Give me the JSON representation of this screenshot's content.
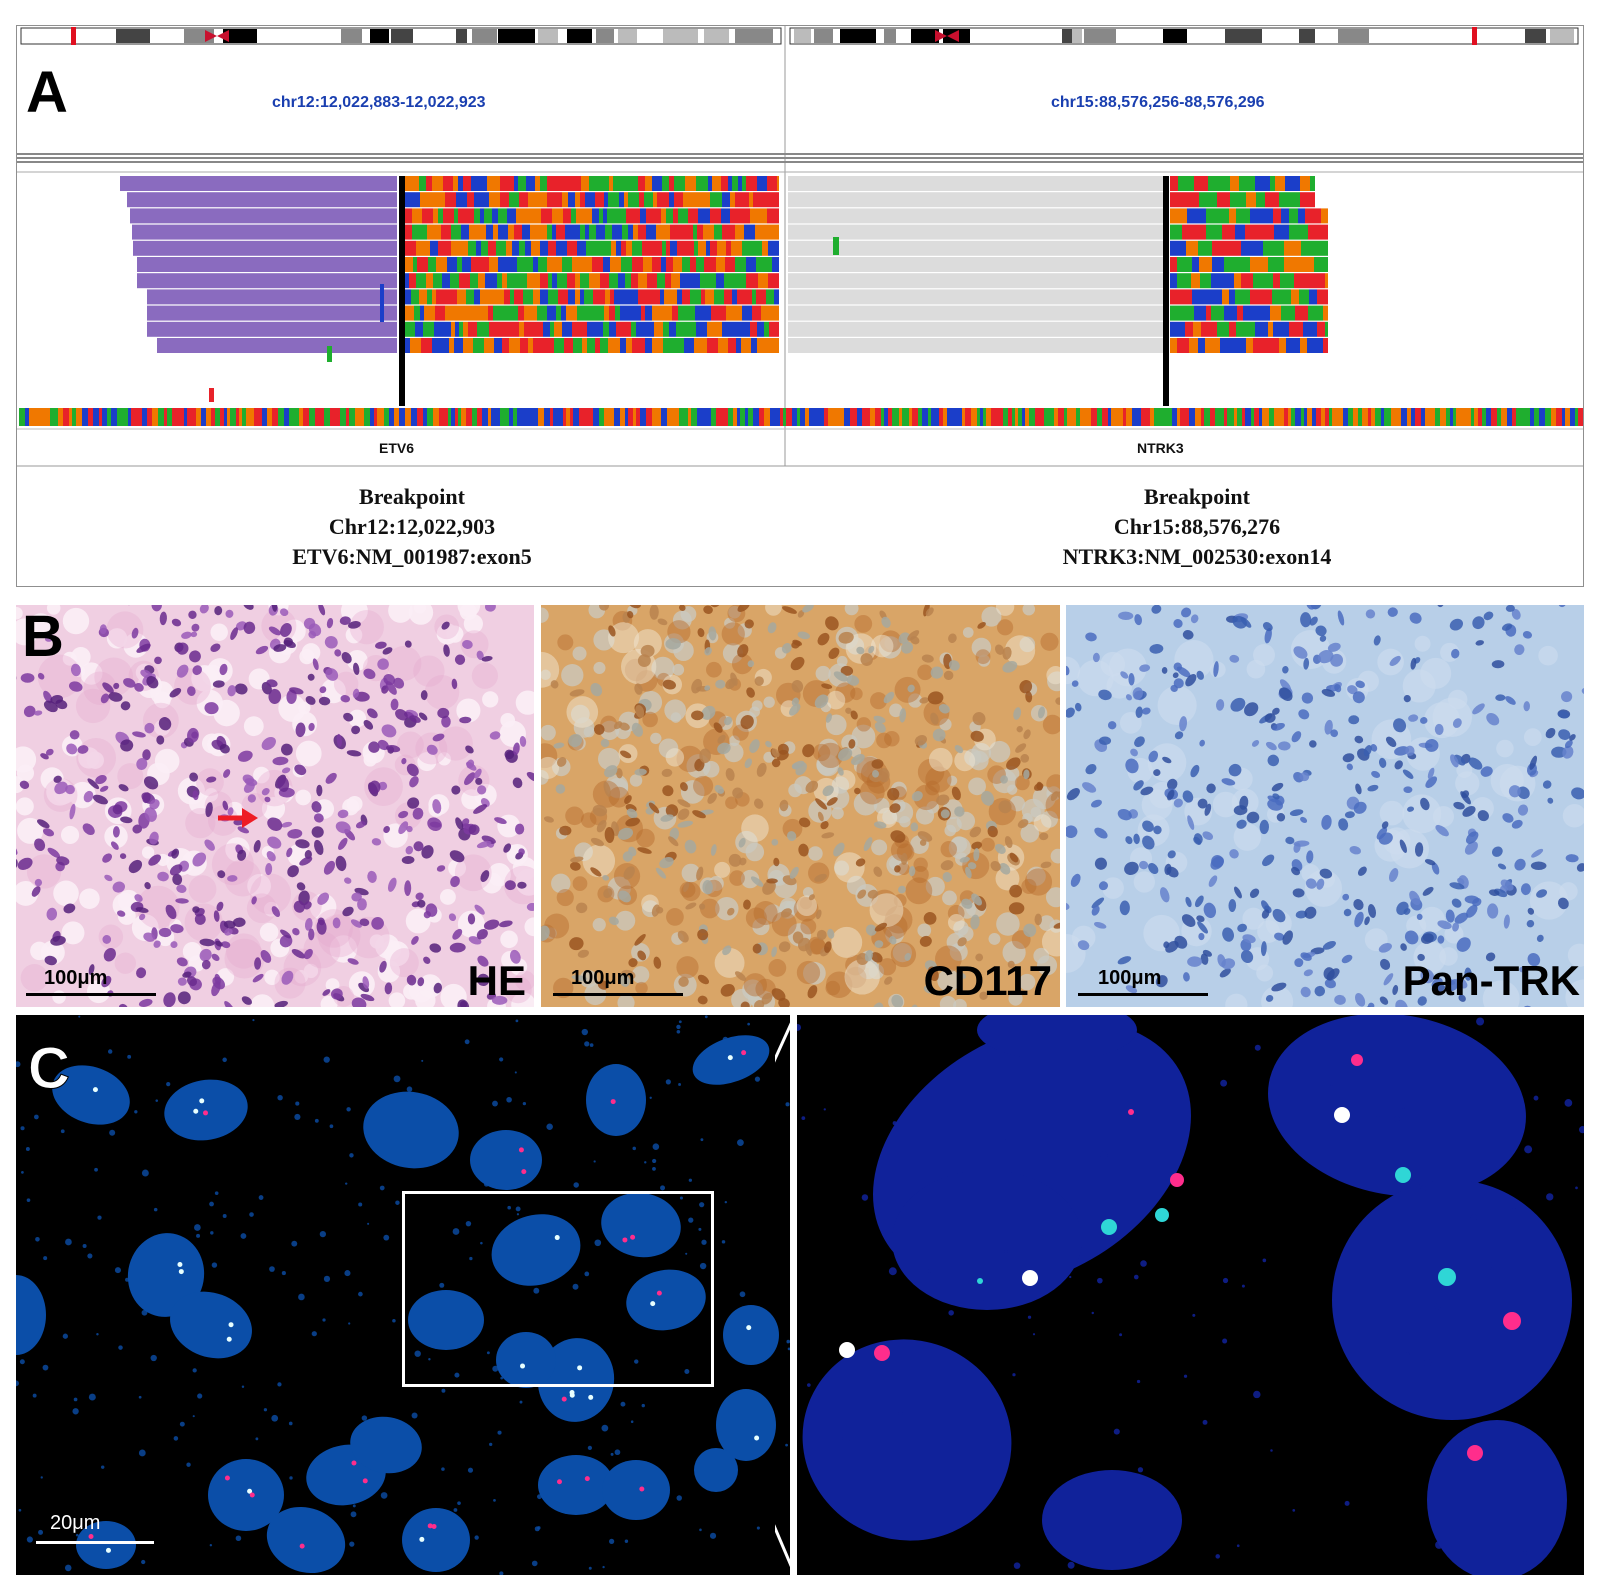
{
  "panel_a": {
    "letter": "A",
    "left_locus": "chr12:12,022,883-12,022,923",
    "right_locus": "chr15:88,576,256-88,576,296",
    "left_gene": "ETV6",
    "right_gene": "NTRK3",
    "left_breakpoint": {
      "title": "Breakpoint",
      "position": "Chr12:12,022,903",
      "transcript": "ETV6:NM_001987:exon5"
    },
    "right_breakpoint": {
      "title": "Breakpoint",
      "position": "Chr15:88,576,276",
      "transcript": "NTRK3:NM_002530:exon14"
    }
  },
  "panel_b": {
    "letter": "B",
    "images": [
      {
        "stain": "HE",
        "scale": "100μm"
      },
      {
        "stain": "CD117",
        "scale": "100μm"
      },
      {
        "stain": "Pan-TRK",
        "scale": "100μm"
      }
    ]
  },
  "panel_c": {
    "letter": "C",
    "scale": "20μm"
  },
  "colors": {
    "read_purple": "#8a6bbf",
    "base_a": "#1fae2f",
    "base_c": "#1b3ec9",
    "base_g": "#f07800",
    "base_t": "#e8222a",
    "dapi": "#0b4ea8",
    "dapi_zoom": "#10229a",
    "signal_red": "#ff2d8c",
    "signal_green": "#2fd6d6"
  }
}
